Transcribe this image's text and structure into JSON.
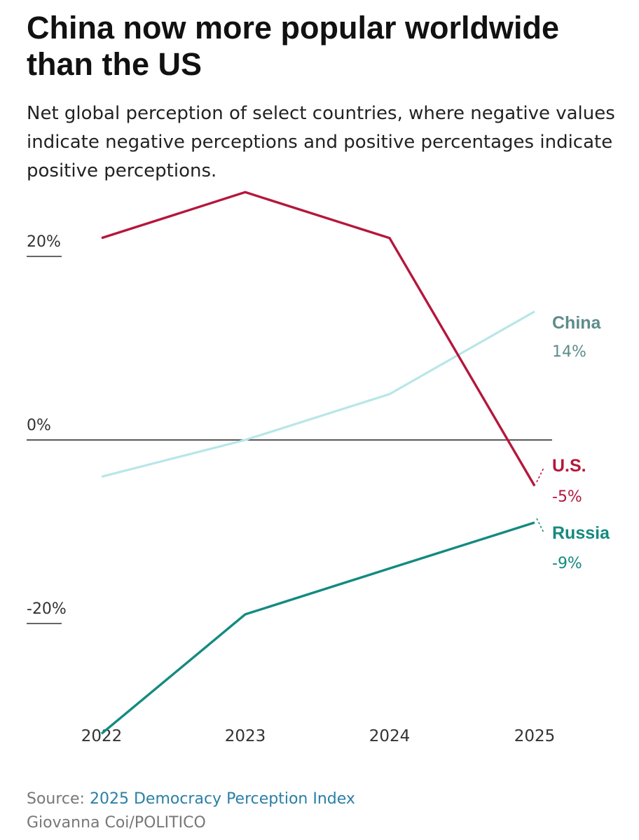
{
  "title": "China now more popular worldwide than the US",
  "subtitle": "Net global perception of select countries, where negative values indicate negative perceptions and positive percentages indicate positive perceptions.",
  "source": {
    "label": "Source:",
    "link_text": "2025 Democracy Perception Index"
  },
  "credit": "Giovanna Coi/POLITICO",
  "chart_data": {
    "type": "line",
    "x": [
      "2022",
      "2023",
      "2024",
      "2025"
    ],
    "y_ticks": [
      "20%",
      "0%",
      "-20%"
    ],
    "y_tick_values": [
      20,
      0,
      -20
    ],
    "ylim": [
      -32,
      28
    ],
    "grid": false,
    "series": [
      {
        "name": "U.S.",
        "values": [
          22,
          27,
          22,
          -5
        ],
        "end_label": "-5%",
        "color": "#b5173b"
      },
      {
        "name": "China",
        "values": [
          -4,
          0,
          5,
          14
        ],
        "end_label": "14%",
        "color": "#b8e6e8",
        "label_color": "#5e8c8c"
      },
      {
        "name": "Russia",
        "values": [
          -32,
          -19,
          -14,
          -9
        ],
        "end_label": "-9%",
        "color": "#148a80"
      }
    ]
  },
  "colors": {
    "link": "#2a7fa6",
    "zero_line": "#222222"
  }
}
